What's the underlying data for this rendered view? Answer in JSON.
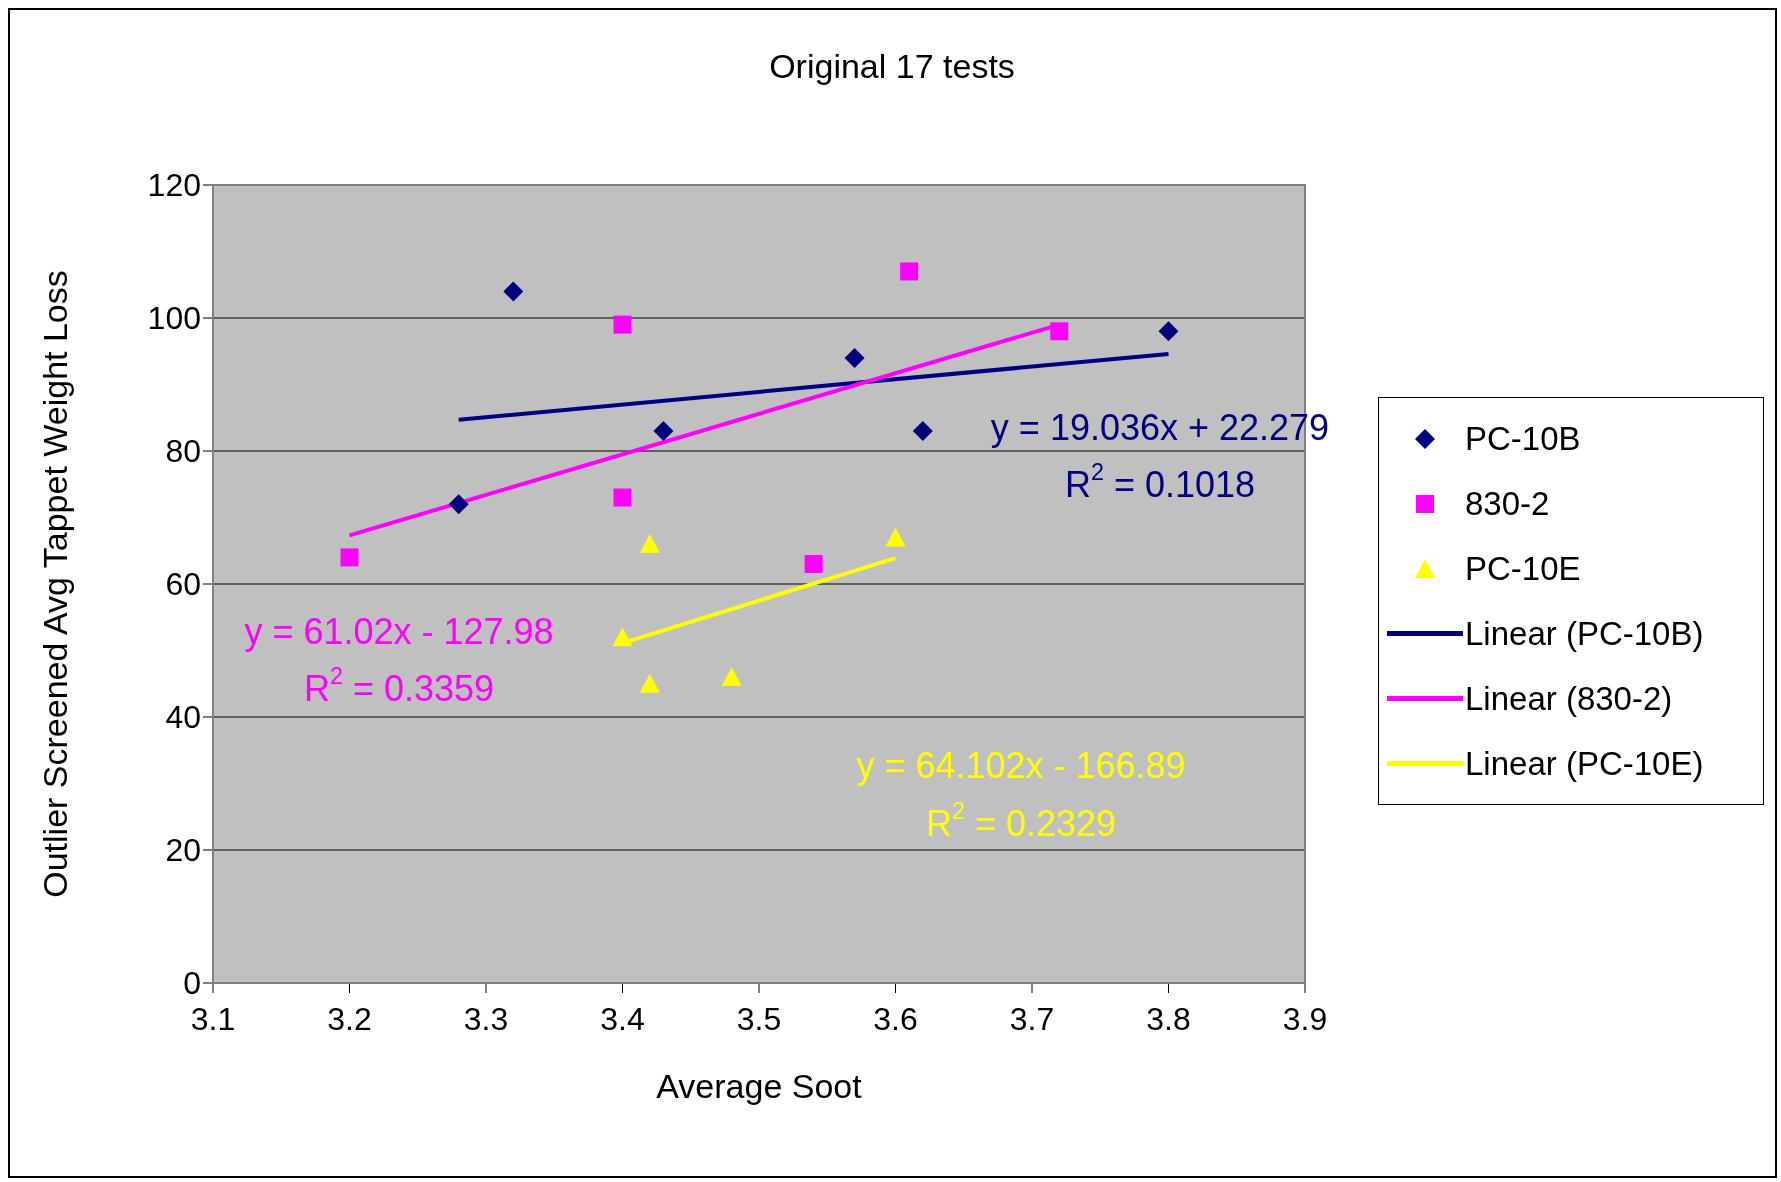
{
  "chart_data": {
    "type": "scatter",
    "title": "Original 17 tests",
    "xlabel": "Average Soot",
    "ylabel": "Outlier Screened Avg Tappet Weight Loss",
    "xlim": [
      3.1,
      3.9
    ],
    "xticks": [
      3.1,
      3.2,
      3.3,
      3.4,
      3.5,
      3.6,
      3.7,
      3.8,
      3.9
    ],
    "ylim": [
      0,
      120
    ],
    "yticks": [
      0,
      20,
      40,
      60,
      80,
      100,
      120
    ],
    "grid": "y",
    "legend": "right",
    "series": [
      {
        "name": "PC-10B",
        "marker": "diamond",
        "color": "#000080",
        "x": [
          3.32,
          3.28,
          3.43,
          3.57,
          3.62,
          3.8
        ],
        "values": [
          104,
          72,
          83,
          94,
          83,
          98
        ]
      },
      {
        "name": "830-2",
        "marker": "square",
        "color": "#ff00ff",
        "x": [
          3.2,
          3.4,
          3.4,
          3.54,
          3.61,
          3.72
        ],
        "values": [
          64,
          99,
          73,
          63,
          107,
          98
        ]
      },
      {
        "name": "PC-10E",
        "marker": "triangle",
        "color": "#ffff00",
        "x": [
          3.4,
          3.42,
          3.42,
          3.48,
          3.6
        ],
        "values": [
          52,
          66,
          45,
          46,
          67
        ]
      },
      {
        "name": "Linear (PC-10B)",
        "type": "line",
        "color": "#000080",
        "x": [
          3.28,
          3.8
        ],
        "values": [
          84.7,
          94.6
        ]
      },
      {
        "name": "Linear (830-2)",
        "type": "line",
        "color": "#ff00ff",
        "x": [
          3.2,
          3.72
        ],
        "values": [
          67.3,
          99.0
        ]
      },
      {
        "name": "Linear (PC-10E)",
        "type": "line",
        "color": "#ffff00",
        "x": [
          3.4,
          3.6
        ],
        "values": [
          51.1,
          63.9
        ]
      }
    ],
    "annotations": [
      "y = 19.036x + 22.279",
      "R$^{2}$ = 0.1018",
      "y = 61.02x - 127.98",
      "R$^{2}$ = 0.3359",
      "y = 64.102x - 166.89",
      "R$^{2}$ = 0.2329"
    ]
  }
}
